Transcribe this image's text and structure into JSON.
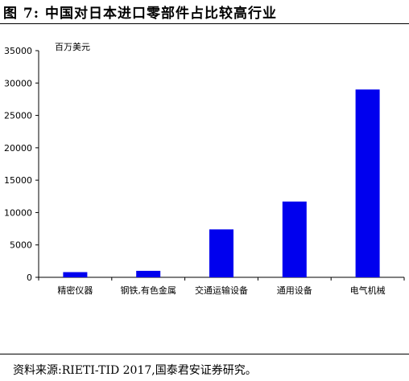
{
  "figure_title": "图 7:  中国对日本进口零部件占比较高行业",
  "source_note": "资料来源:RIETI-TID 2017,国泰君安证券研究。",
  "chart_data": {
    "type": "bar",
    "unit_label": "百万美元",
    "categories": [
      "精密仪器",
      "钢铁,有色金属",
      "交通运输设备",
      "通用设备",
      "电气机械"
    ],
    "values": [
      800,
      1000,
      7400,
      11700,
      29000
    ],
    "ylim": [
      0,
      35000
    ],
    "yticks": [
      0,
      5000,
      10000,
      15000,
      20000,
      25000,
      30000,
      35000
    ],
    "bar_color": "#0000ee",
    "grid": false,
    "legend": "none"
  }
}
